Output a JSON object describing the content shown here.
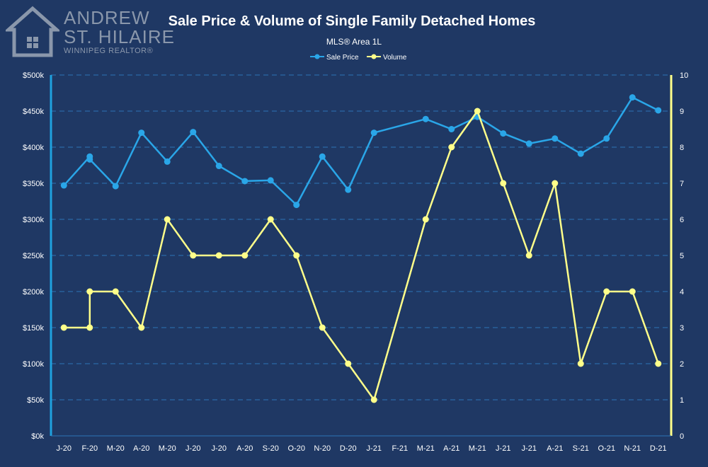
{
  "logo": {
    "line1": "ANDREW",
    "line2": "ST. HILAIRE",
    "line3": "WINNIPEG REALTOR®",
    "icon": "house-icon"
  },
  "chart_data": {
    "type": "line",
    "title": "Sale Price & Volume of Single Family Detached Homes",
    "subtitle": "MLS® Area 1L",
    "legend": {
      "placement": "top-center"
    },
    "x_tick_labels": [
      "J-20",
      "F-20",
      "M-20",
      "A-20",
      "M-20",
      "J-20",
      "J-20",
      "A-20",
      "S-20",
      "O-20",
      "N-20",
      "D-20",
      "J-21",
      "F-21",
      "M-21",
      "A-21",
      "M-21",
      "J-21",
      "J-21",
      "A-21",
      "S-21",
      "O-21",
      "N-21",
      "D-21"
    ],
    "y_left": {
      "min": 0,
      "max": 500,
      "step": 50,
      "tick_labels": [
        "$0k",
        "$50k",
        "$100k",
        "$150k",
        "$200k",
        "$250k",
        "$300k",
        "$350k",
        "$400k",
        "$450k",
        "$500k"
      ]
    },
    "y_right": {
      "min": 0,
      "max": 10,
      "step": 1,
      "tick_labels": [
        "0",
        "1",
        "2",
        "3",
        "4",
        "5",
        "6",
        "7",
        "8",
        "9",
        "10"
      ]
    },
    "grid": true,
    "series": [
      {
        "name": "Sale Price",
        "axis": "left",
        "color": "#2aa6e8",
        "unit": "$k",
        "points": [
          [
            0,
            347
          ],
          [
            1,
            387
          ],
          [
            1,
            383
          ],
          [
            2,
            346
          ],
          [
            3,
            420
          ],
          [
            4,
            380
          ],
          [
            5,
            421
          ],
          [
            6,
            374
          ],
          [
            7,
            353
          ],
          [
            8,
            354
          ],
          [
            9,
            320
          ],
          [
            10,
            387
          ],
          [
            11,
            341
          ],
          [
            12,
            420
          ],
          [
            14,
            439
          ],
          [
            15,
            425
          ],
          [
            16,
            442
          ],
          [
            17,
            419
          ],
          [
            18,
            405
          ],
          [
            19,
            412
          ],
          [
            20,
            391
          ],
          [
            21,
            412
          ],
          [
            22,
            469
          ],
          [
            23,
            451
          ]
        ]
      },
      {
        "name": "Volume",
        "axis": "right",
        "color": "#ffff8a",
        "unit": "homes",
        "points": [
          [
            0,
            3
          ],
          [
            1,
            3
          ],
          [
            1,
            4
          ],
          [
            2,
            4
          ],
          [
            3,
            3
          ],
          [
            4,
            6
          ],
          [
            5,
            5
          ],
          [
            6,
            5
          ],
          [
            7,
            5
          ],
          [
            8,
            6
          ],
          [
            9,
            5
          ],
          [
            10,
            3
          ],
          [
            11,
            2
          ],
          [
            12,
            1
          ],
          [
            14,
            6
          ],
          [
            15,
            8
          ],
          [
            16,
            9
          ],
          [
            17,
            7
          ],
          [
            18,
            5
          ],
          [
            19,
            7
          ],
          [
            20,
            2
          ],
          [
            21,
            4
          ],
          [
            22,
            4
          ],
          [
            23,
            2
          ]
        ]
      }
    ]
  }
}
